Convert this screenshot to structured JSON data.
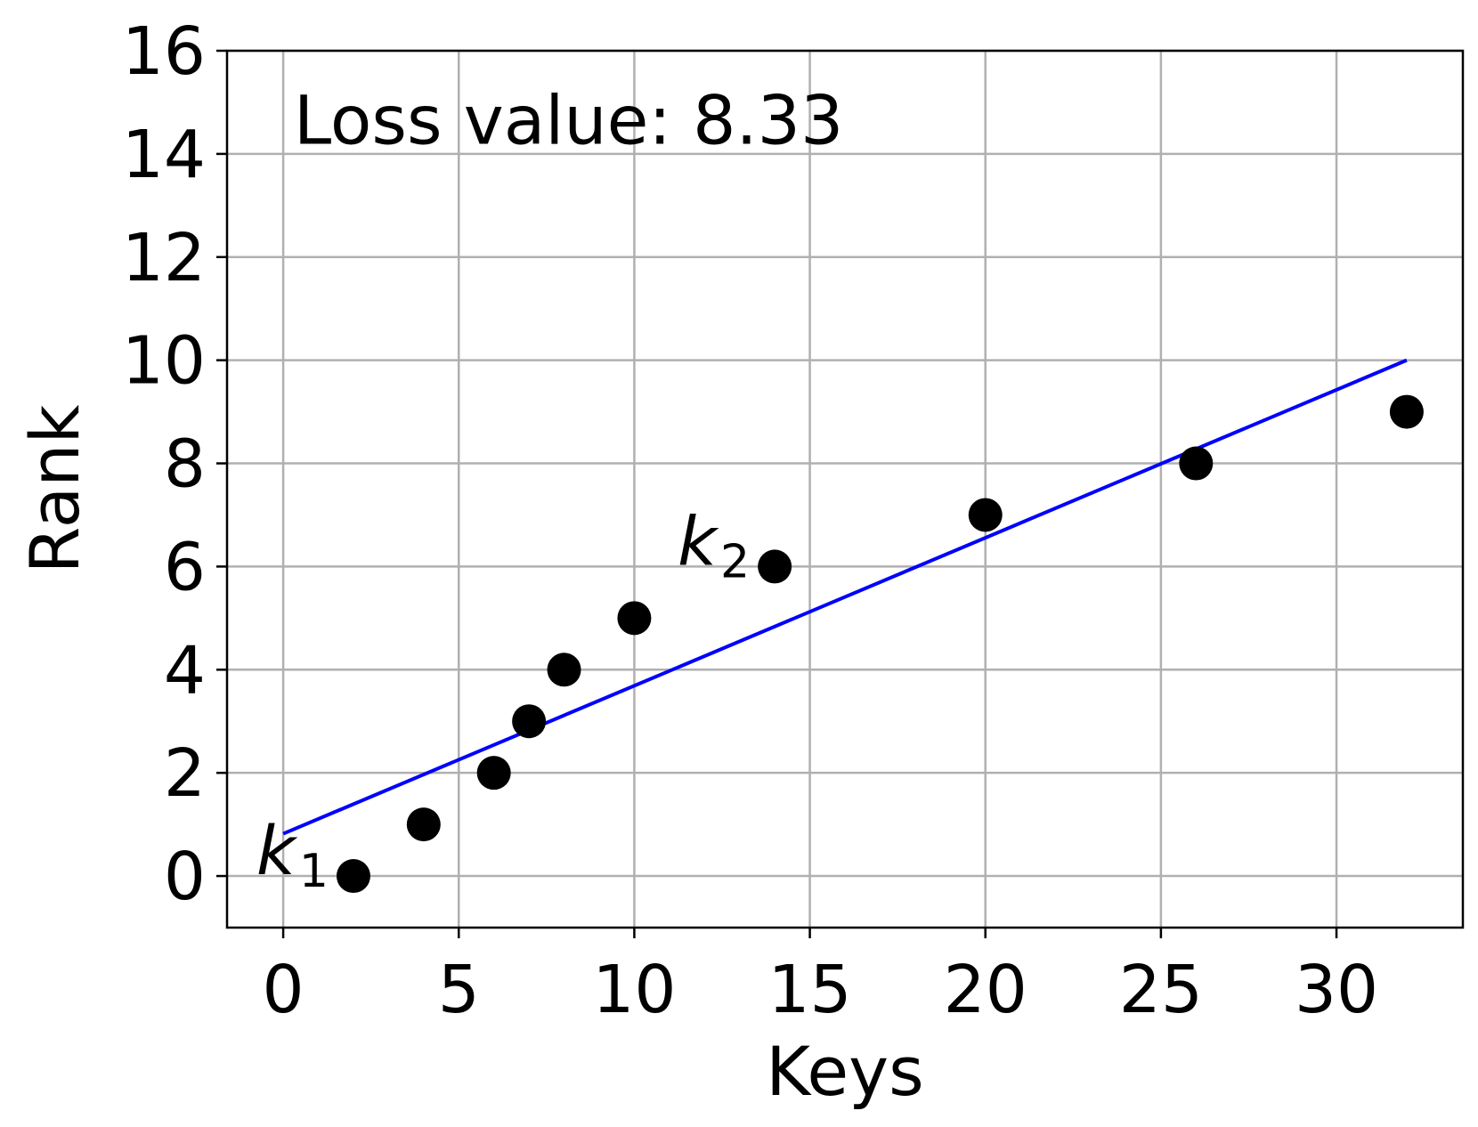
{
  "chart_data": {
    "type": "scatter",
    "xlabel": "Keys",
    "ylabel": "Rank",
    "xlim": [
      -1.6,
      33.6
    ],
    "ylim": [
      -1,
      16
    ],
    "xticks": [
      0,
      5,
      10,
      15,
      20,
      25,
      30
    ],
    "yticks": [
      0,
      2,
      4,
      6,
      8,
      10,
      12,
      14,
      16
    ],
    "grid": true,
    "points": {
      "x": [
        2,
        4,
        6,
        7,
        8,
        10,
        14,
        20,
        26,
        32
      ],
      "y": [
        0,
        1,
        2,
        3,
        4,
        5,
        6,
        7,
        8,
        9
      ],
      "color": "#000000"
    },
    "fit_line": {
      "x": [
        0,
        32
      ],
      "y": [
        0.82,
        10.0
      ],
      "color": "#0000ff"
    },
    "annotation": "Loss value: 8.33",
    "point_labels": [
      {
        "base": "k",
        "sub": "1",
        "x": 2,
        "y": 0
      },
      {
        "base": "k",
        "sub": "2",
        "x": 14,
        "y": 6
      }
    ]
  }
}
